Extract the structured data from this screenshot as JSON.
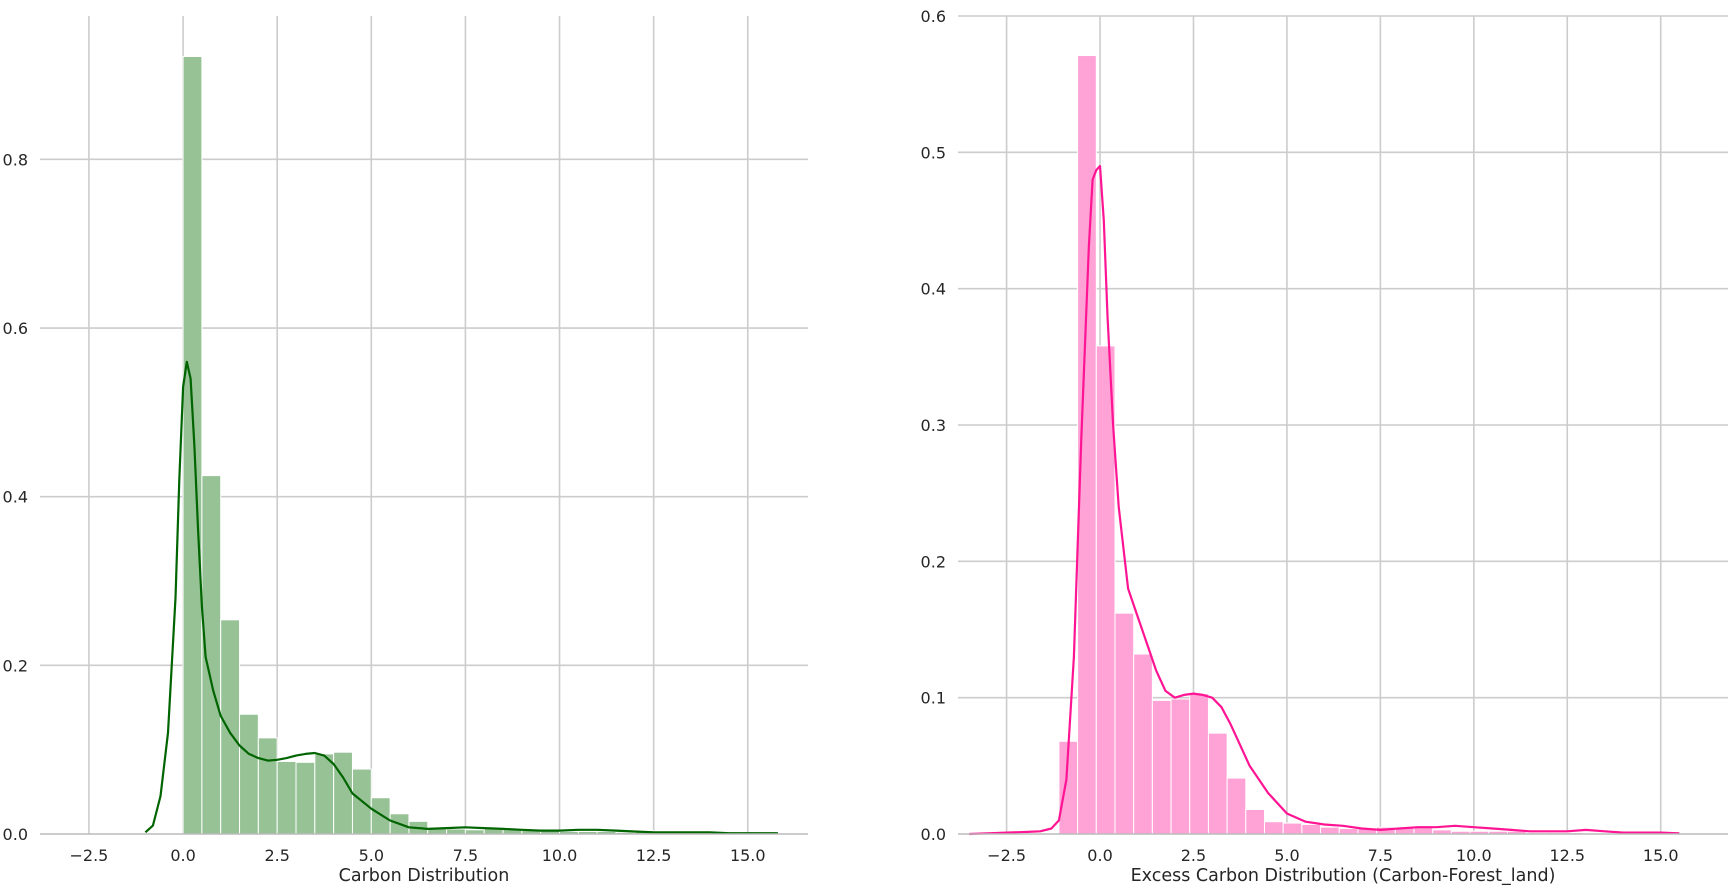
{
  "chart_data": [
    {
      "type": "histogram",
      "xlabel": "Carbon Distribution",
      "ylabel": "",
      "xlim": [
        -3.8,
        16.6
      ],
      "ylim": [
        0,
        0.97
      ],
      "xticks": [
        -2.5,
        0.0,
        2.5,
        5.0,
        7.5,
        10.0,
        12.5,
        15.0
      ],
      "xtick_labels": [
        "−2.5",
        "0.0",
        "2.5",
        "5.0",
        "7.5",
        "10.0",
        "12.5",
        "15.0"
      ],
      "yticks": [
        0.0,
        0.2,
        0.4,
        0.6,
        0.8
      ],
      "ytick_labels": [
        "0.0",
        "0.2",
        "0.4",
        "0.6",
        "0.8"
      ],
      "grid": true,
      "bar_color": "#97C296",
      "line_color": "#006400",
      "bin_start": 0.0,
      "bin_width": 0.5,
      "bin_values": [
        0.922,
        0.425,
        0.254,
        0.142,
        0.114,
        0.086,
        0.085,
        0.095,
        0.097,
        0.077,
        0.043,
        0.024,
        0.015,
        0.007,
        0.006,
        0.005,
        0.007,
        0.006,
        0.005,
        0.004,
        0.003,
        0.003,
        0.003,
        0.002,
        0.004,
        0.003,
        0.002,
        0.002,
        0.002,
        0.001,
        0.001,
        0.001
      ],
      "kde_x": [
        -1.0,
        -0.8,
        -0.6,
        -0.4,
        -0.2,
        -0.1,
        0.0,
        0.1,
        0.2,
        0.3,
        0.4,
        0.5,
        0.6,
        0.8,
        1.0,
        1.25,
        1.5,
        1.75,
        2.0,
        2.25,
        2.5,
        2.75,
        3.0,
        3.25,
        3.5,
        3.75,
        4.0,
        4.25,
        4.5,
        5.0,
        5.5,
        6.0,
        6.5,
        7.0,
        7.5,
        8.0,
        8.5,
        9.0,
        9.5,
        10.0,
        10.5,
        11.0,
        11.5,
        12.0,
        12.5,
        13.0,
        13.5,
        14.0,
        14.5,
        15.0,
        15.5,
        15.8
      ],
      "kde_y": [
        0.002,
        0.01,
        0.045,
        0.12,
        0.28,
        0.42,
        0.53,
        0.56,
        0.54,
        0.46,
        0.36,
        0.27,
        0.21,
        0.17,
        0.14,
        0.12,
        0.105,
        0.095,
        0.09,
        0.087,
        0.088,
        0.09,
        0.093,
        0.095,
        0.096,
        0.093,
        0.083,
        0.067,
        0.048,
        0.03,
        0.016,
        0.008,
        0.006,
        0.007,
        0.008,
        0.007,
        0.006,
        0.005,
        0.004,
        0.004,
        0.005,
        0.005,
        0.004,
        0.003,
        0.002,
        0.002,
        0.002,
        0.002,
        0.001,
        0.001,
        0.001,
        0.001
      ]
    },
    {
      "type": "histogram",
      "xlabel": "Excess Carbon Distribution (Carbon-Forest_land)",
      "ylabel": "",
      "xlim": [
        -3.8,
        16.8
      ],
      "ylim": [
        0,
        0.6
      ],
      "xticks": [
        -2.5,
        0.0,
        2.5,
        5.0,
        7.5,
        10.0,
        12.5,
        15.0
      ],
      "xtick_labels": [
        "−2.5",
        "0.0",
        "2.5",
        "5.0",
        "7.5",
        "10.0",
        "12.5",
        "15.0"
      ],
      "yticks": [
        0.0,
        0.1,
        0.2,
        0.3,
        0.4,
        0.5,
        0.6
      ],
      "ytick_labels": [
        "0.0",
        "0.1",
        "0.2",
        "0.3",
        "0.4",
        "0.5",
        "0.6"
      ],
      "grid": true,
      "bar_color": "#FFA2D6",
      "line_color": "#FF1493",
      "bin_start": -1.1,
      "bin_width": 0.5,
      "bin_values": [
        0.068,
        0.571,
        0.358,
        0.162,
        0.132,
        0.098,
        0.099,
        0.103,
        0.074,
        0.041,
        0.018,
        0.009,
        0.008,
        0.007,
        0.005,
        0.004,
        0.004,
        0.005,
        0.005,
        0.005,
        0.003,
        0.002,
        0.002,
        0.002,
        0.002,
        0.001,
        0.001,
        0.001
      ],
      "kde_x": [
        -3.5,
        -3.0,
        -2.5,
        -2.0,
        -1.6,
        -1.3,
        -1.1,
        -0.9,
        -0.7,
        -0.5,
        -0.3,
        -0.2,
        -0.1,
        0.0,
        0.1,
        0.2,
        0.35,
        0.5,
        0.75,
        1.0,
        1.25,
        1.5,
        1.75,
        2.0,
        2.25,
        2.5,
        2.75,
        3.0,
        3.25,
        3.5,
        4.0,
        4.5,
        5.0,
        5.5,
        6.0,
        6.5,
        7.0,
        7.5,
        8.0,
        8.5,
        9.0,
        9.5,
        10.0,
        10.5,
        11.0,
        11.5,
        12.0,
        12.5,
        13.0,
        13.5,
        14.0,
        14.5,
        15.0,
        15.5
      ],
      "kde_y": [
        0.0,
        0.0005,
        0.001,
        0.0015,
        0.002,
        0.004,
        0.01,
        0.04,
        0.13,
        0.29,
        0.43,
        0.48,
        0.487,
        0.49,
        0.45,
        0.38,
        0.3,
        0.24,
        0.18,
        0.16,
        0.14,
        0.12,
        0.105,
        0.1,
        0.102,
        0.103,
        0.102,
        0.1,
        0.093,
        0.08,
        0.05,
        0.03,
        0.015,
        0.009,
        0.007,
        0.006,
        0.004,
        0.003,
        0.004,
        0.005,
        0.005,
        0.006,
        0.005,
        0.004,
        0.003,
        0.002,
        0.002,
        0.002,
        0.003,
        0.002,
        0.001,
        0.001,
        0.001,
        0.0005
      ]
    }
  ]
}
